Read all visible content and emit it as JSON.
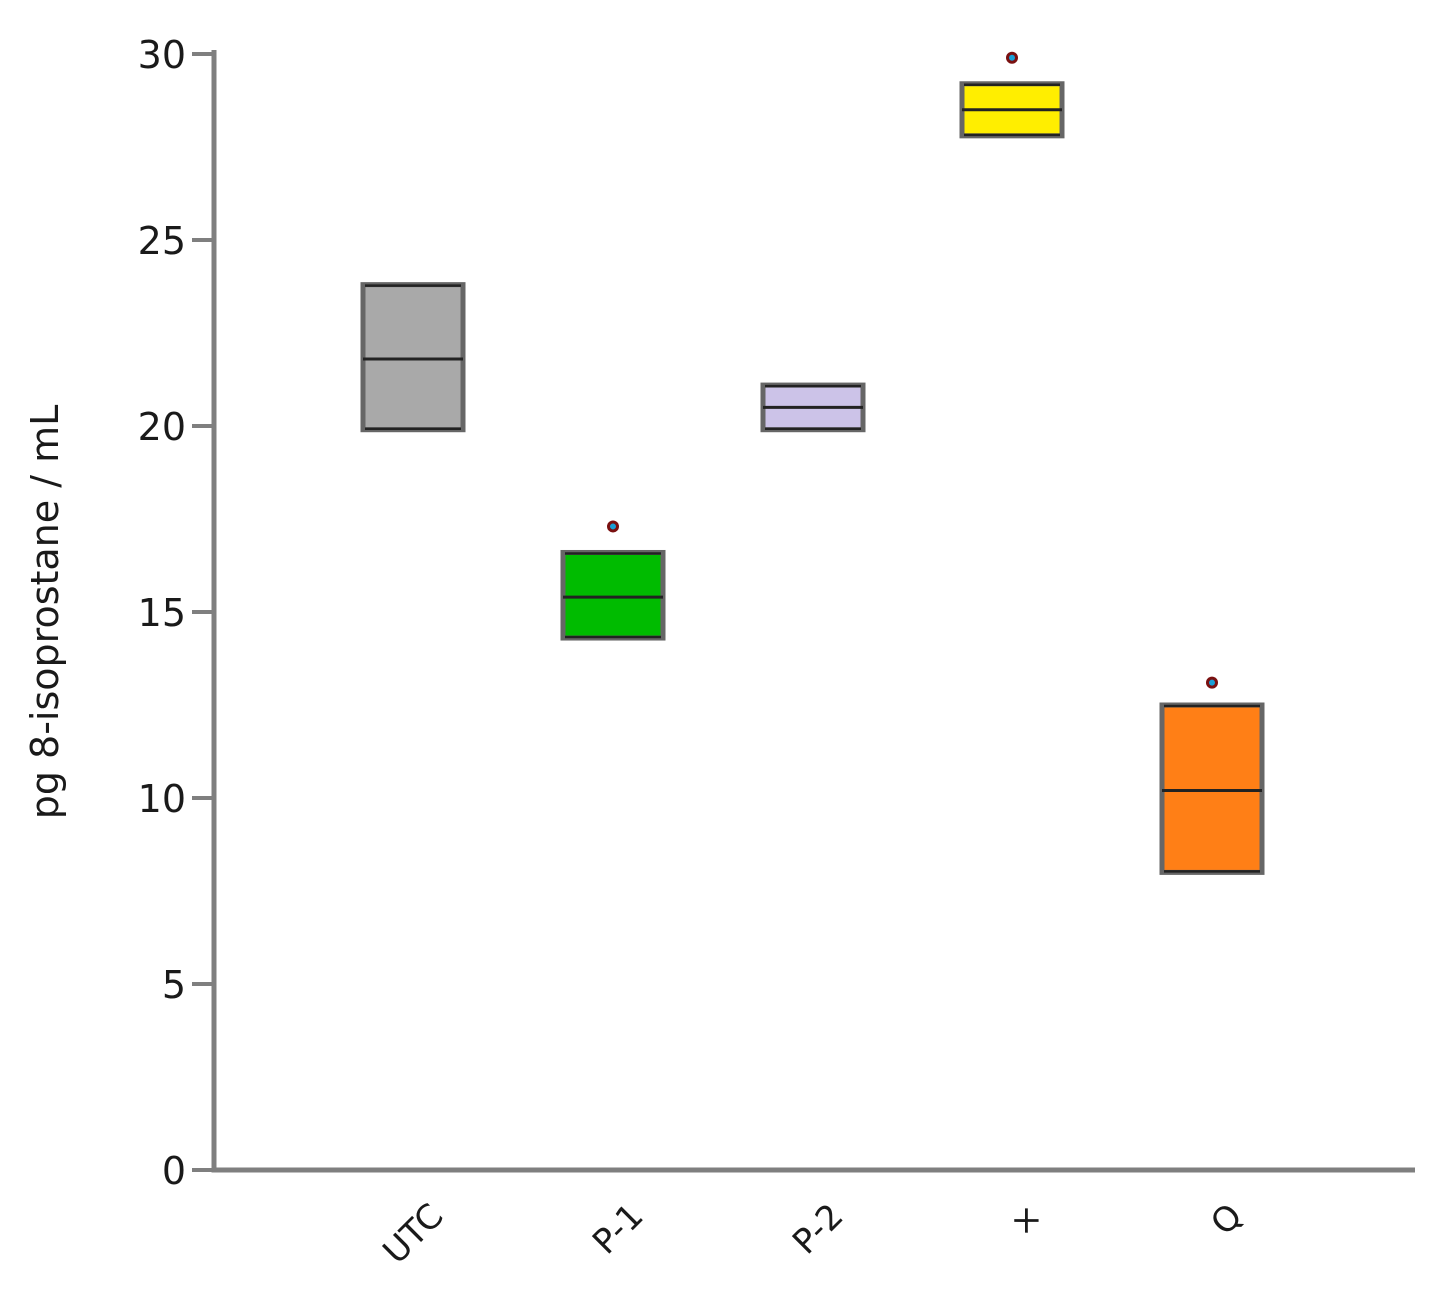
{
  "chart_data": {
    "type": "box",
    "title": "",
    "xlabel": "",
    "ylabel": "pg 8-isoprostane / mL",
    "ylim": [
      0,
      30
    ],
    "yticks": [
      0,
      5,
      10,
      15,
      20,
      25,
      30
    ],
    "grid": false,
    "legend": "none",
    "categories": [
      "UTC",
      "P-1",
      "P-2",
      "×",
      "Q"
    ],
    "boxes": [
      {
        "category": "UTC",
        "q1": 19.9,
        "median": 21.8,
        "q3": 23.8,
        "color": "#a9a9a9",
        "marker": false
      },
      {
        "category": "P-1",
        "q1": 14.3,
        "median": 15.4,
        "q3": 16.6,
        "color": "#00bb00",
        "marker": true,
        "marker_value": 17.3
      },
      {
        "category": "P-2",
        "q1": 19.9,
        "median": 20.5,
        "q3": 21.1,
        "color": "#ccc3e8",
        "marker": false
      },
      {
        "category": "×",
        "q1": 27.8,
        "median": 28.5,
        "q3": 29.2,
        "color": "#ffee00",
        "marker": true,
        "marker_value": 29.9
      },
      {
        "category": "Q",
        "q1": 8.0,
        "median": 10.2,
        "q3": 12.5,
        "color": "#ff7f16",
        "marker": true,
        "marker_value": 13.1
      }
    ],
    "marker_colors": {
      "outer": "#7a1010",
      "inner": "#1a9fd6"
    }
  }
}
